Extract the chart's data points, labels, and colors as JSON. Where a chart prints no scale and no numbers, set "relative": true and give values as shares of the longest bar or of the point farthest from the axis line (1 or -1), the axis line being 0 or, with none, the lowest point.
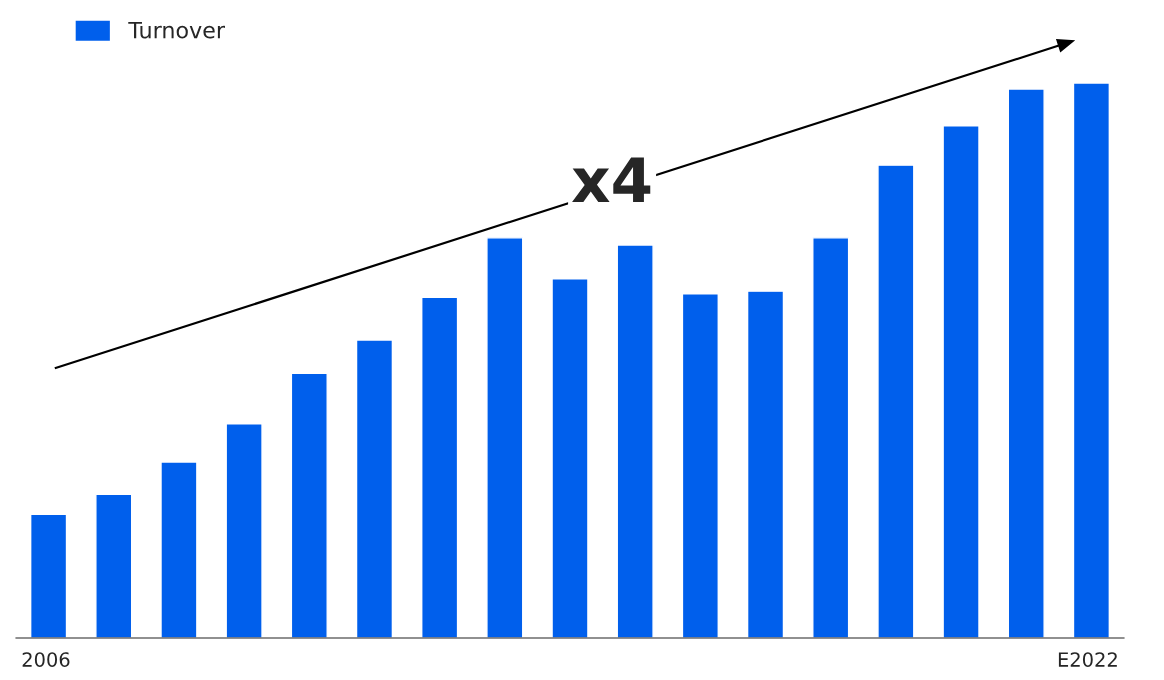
{
  "chart_data": {
    "type": "bar",
    "relative": true,
    "categories": [
      "2006",
      null,
      null,
      null,
      null,
      null,
      null,
      null,
      null,
      null,
      null,
      null,
      null,
      null,
      null,
      null,
      "E2022"
    ],
    "series": [
      {
        "name": "Turnover",
        "color": "#005fec",
        "values": [
          0.223,
          0.259,
          0.317,
          0.386,
          0.477,
          0.537,
          0.614,
          0.721,
          0.647,
          0.708,
          0.62,
          0.625,
          0.721,
          0.852,
          0.923,
          0.989,
          1
        ]
      }
    ],
    "annotations": [
      "x4"
    ],
    "legend": "top left"
  }
}
